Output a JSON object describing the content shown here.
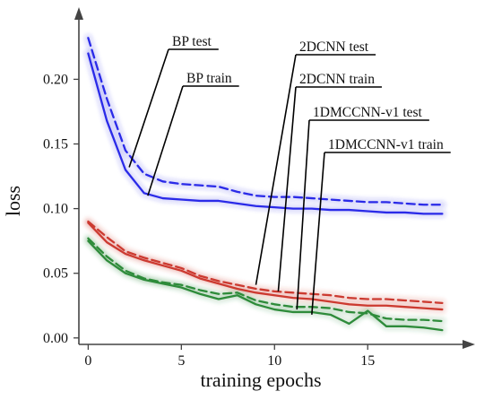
{
  "chart_data": {
    "type": "line",
    "title": "",
    "xlabel": "training epochs",
    "ylabel": "loss",
    "xlim": [
      -0.5,
      19.8
    ],
    "ylim": [
      -0.005,
      0.253
    ],
    "xticks": [
      0,
      5,
      10,
      15
    ],
    "yticks": [
      0.0,
      0.05,
      0.1,
      0.15,
      0.2
    ],
    "xtick_labels": [
      "0",
      "5",
      "10",
      "15"
    ],
    "ytick_labels": [
      "0.00",
      "0.05",
      "0.10",
      "0.15",
      "0.20"
    ],
    "grid": false,
    "legend": "none (series identified by callout annotations)",
    "colors": {
      "bp": "#2a2ae8",
      "cnn2d": "#cc3a30",
      "cnn1d": "#2e8b3a",
      "axis": "#444444",
      "callout": "#000000"
    },
    "x": [
      0,
      1,
      2,
      3,
      4,
      5,
      6,
      7,
      8,
      9,
      10,
      11,
      12,
      13,
      14,
      15,
      16,
      17,
      18,
      19
    ],
    "series": [
      {
        "name": "BP test",
        "color": "#2a2ae8",
        "dashed": true,
        "values": [
          0.232,
          0.185,
          0.145,
          0.127,
          0.121,
          0.119,
          0.118,
          0.117,
          0.113,
          0.11,
          0.109,
          0.109,
          0.108,
          0.107,
          0.106,
          0.105,
          0.105,
          0.104,
          0.103,
          0.103
        ]
      },
      {
        "name": "BP train",
        "color": "#2a2ae8",
        "dashed": false,
        "values": [
          0.22,
          0.168,
          0.13,
          0.112,
          0.108,
          0.107,
          0.106,
          0.106,
          0.104,
          0.102,
          0.101,
          0.1,
          0.1,
          0.099,
          0.099,
          0.098,
          0.097,
          0.097,
          0.096,
          0.096
        ]
      },
      {
        "name": "2DCNN test",
        "color": "#cc3a30",
        "dashed": true,
        "values": [
          0.09,
          0.078,
          0.067,
          0.062,
          0.058,
          0.054,
          0.048,
          0.044,
          0.041,
          0.038,
          0.036,
          0.035,
          0.034,
          0.033,
          0.031,
          0.03,
          0.03,
          0.029,
          0.028,
          0.027
        ]
      },
      {
        "name": "2DCNN train",
        "color": "#cc3a30",
        "dashed": false,
        "values": [
          0.089,
          0.074,
          0.065,
          0.06,
          0.056,
          0.052,
          0.046,
          0.042,
          0.038,
          0.035,
          0.033,
          0.031,
          0.03,
          0.028,
          0.026,
          0.025,
          0.025,
          0.024,
          0.023,
          0.022
        ]
      },
      {
        "name": "1DMCCNN-v1 test",
        "color": "#2e8b3a",
        "dashed": true,
        "values": [
          0.077,
          0.063,
          0.052,
          0.046,
          0.043,
          0.041,
          0.037,
          0.034,
          0.035,
          0.029,
          0.026,
          0.024,
          0.024,
          0.023,
          0.02,
          0.019,
          0.015,
          0.014,
          0.014,
          0.013
        ]
      },
      {
        "name": "1DMCCNN-v1 train",
        "color": "#2e8b3a",
        "dashed": false,
        "values": [
          0.075,
          0.06,
          0.05,
          0.045,
          0.042,
          0.039,
          0.034,
          0.03,
          0.033,
          0.026,
          0.022,
          0.02,
          0.02,
          0.018,
          0.011,
          0.021,
          0.009,
          0.009,
          0.008,
          0.006
        ]
      }
    ],
    "annotations": [
      {
        "text": "BP test",
        "x": 2.2,
        "y": 0.132
      },
      {
        "text": "BP train",
        "x": 3.2,
        "y": 0.11
      },
      {
        "text": "2DCNN test",
        "x": 9.0,
        "y": 0.041
      },
      {
        "text": "2DCNN train",
        "x": 10.2,
        "y": 0.036
      },
      {
        "text": "1DMCCNN-v1 test",
        "x": 11.2,
        "y": 0.022
      },
      {
        "text": "1DMCCNN-v1 train",
        "x": 12.0,
        "y": 0.018
      }
    ]
  }
}
